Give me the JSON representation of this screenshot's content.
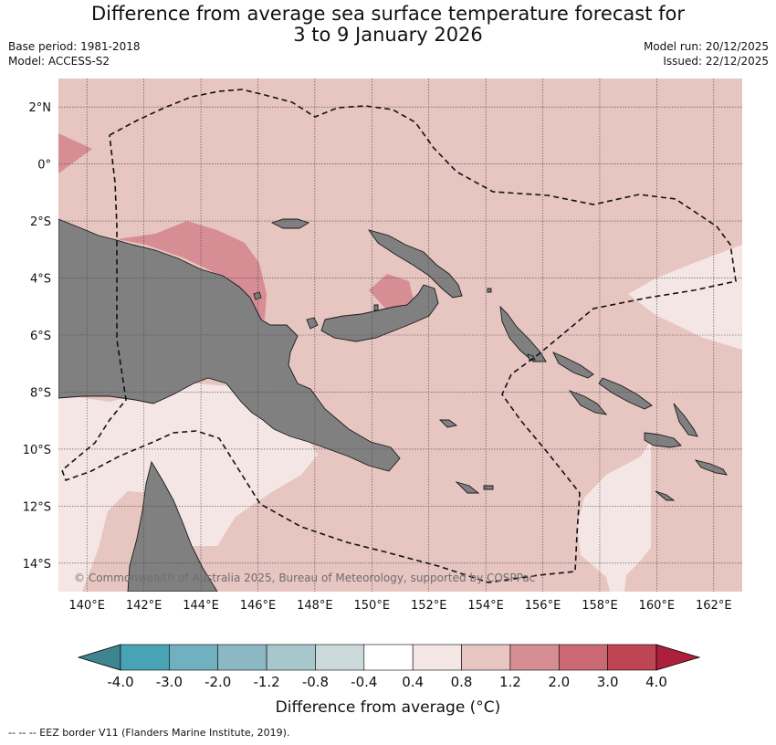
{
  "title_line1": "Difference from average sea surface temperature forecast for",
  "title_line2": "3 to 9 January 2026",
  "base_period": "Base period: 1981-2018",
  "model": "Model: ACCESS-S2",
  "model_run": "Model run: 20/12/2025",
  "issued": "Issued: 22/12/2025",
  "copyright": "© Commonwealth of Australia 2025, Bureau of Meteorology, supported by COSPPac",
  "footer": "--  --  -- EEZ border V11 (Flanders Marine Institute, 2019).",
  "map": {
    "lon_range": [
      139,
      163
    ],
    "lat_range": [
      -15,
      3
    ],
    "lat_ticks": [
      {
        "value": 2,
        "label": "2°N"
      },
      {
        "value": 0,
        "label": "0°"
      },
      {
        "value": -2,
        "label": "2°S"
      },
      {
        "value": -4,
        "label": "4°S"
      },
      {
        "value": -6,
        "label": "6°S"
      },
      {
        "value": -8,
        "label": "8°S"
      },
      {
        "value": -10,
        "label": "10°S"
      },
      {
        "value": -12,
        "label": "12°S"
      },
      {
        "value": -14,
        "label": "14°S"
      }
    ],
    "lon_ticks": [
      {
        "value": 140,
        "label": "140°E"
      },
      {
        "value": 142,
        "label": "142°E"
      },
      {
        "value": 144,
        "label": "144°E"
      },
      {
        "value": 146,
        "label": "146°E"
      },
      {
        "value": 148,
        "label": "148°E"
      },
      {
        "value": 150,
        "label": "150°E"
      },
      {
        "value": 152,
        "label": "152°E"
      },
      {
        "value": 154,
        "label": "154°E"
      },
      {
        "value": 156,
        "label": "156°E"
      },
      {
        "value": 158,
        "label": "158°E"
      },
      {
        "value": 160,
        "label": "160°E"
      },
      {
        "value": 162,
        "label": "162°E"
      }
    ],
    "gridlines": true,
    "colors": {
      "band_0_4_0_8": "#f4e6e4",
      "band_0_8_1_2": "#e7c5c1",
      "band_1_2_2_0": "#d68d94",
      "land": "#808080",
      "eez": "#111111"
    }
  },
  "colorbar": {
    "title": "Difference from average (°C)",
    "labels": [
      "-4.0",
      "-3.0",
      "-2.0",
      "-1.2",
      "-0.8",
      "-0.4",
      "0.4",
      "0.8",
      "1.2",
      "2.0",
      "3.0",
      "4.0"
    ],
    "colors": [
      "#3f8590",
      "#48a3b4",
      "#70b0bf",
      "#8bb8c3",
      "#a8c7cc",
      "#ccd9db",
      "#ffffff",
      "#f4e6e4",
      "#e7c5c1",
      "#d68d94",
      "#cb6a74",
      "#bf4454",
      "#ad1f3a"
    ]
  }
}
